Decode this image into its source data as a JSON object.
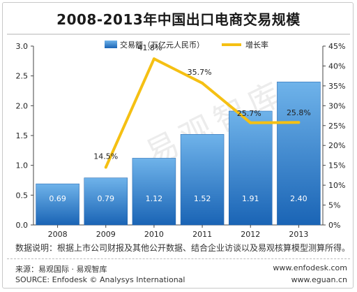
{
  "title": "2008-2013年中国出口电商交易规模",
  "watermark_text": "易观智库",
  "note": "数据说明：根据上市公司财报及其他公开数据、结合企业访谈以及易观核算模型测算所得。",
  "source_cn": "来源：易观国际 · 易观智库",
  "source_en": "SOURCE: Enfodesk © Analysys International",
  "url_1": "www.enfodesk.com",
  "url_2": "www.eguan.cn",
  "colors": {
    "bar_top": "#6fb3ea",
    "bar_bottom": "#1a64b5",
    "line": "#f5c013"
  },
  "chart_data": {
    "type": "bar",
    "categories": [
      "2008",
      "2009",
      "2010",
      "2011",
      "2012",
      "2013"
    ],
    "series": [
      {
        "name": "交易额（万亿元人民币）",
        "type": "bar",
        "axis": "left",
        "values": [
          0.69,
          0.79,
          1.12,
          1.52,
          1.91,
          2.4
        ],
        "labels": [
          "0.69",
          "0.79",
          "1.12",
          "1.52",
          "1.91",
          "2.40"
        ]
      },
      {
        "name": "增长率",
        "type": "line",
        "axis": "right",
        "values": [
          null,
          14.5,
          41.8,
          35.7,
          25.7,
          25.8
        ],
        "labels": [
          "",
          "14.5%",
          "41.8%",
          "35.7%",
          "25.7%",
          "25.8%"
        ]
      }
    ],
    "y_left": {
      "ylim": [
        0,
        3.0
      ],
      "ticks": [
        "0.0",
        "0.5",
        "1.0",
        "1.5",
        "2.0",
        "2.5",
        "3.0"
      ]
    },
    "y_right": {
      "ylim": [
        0,
        45
      ],
      "ticks": [
        "0%",
        "5%",
        "10%",
        "15%",
        "20%",
        "25%",
        "30%",
        "35%",
        "40%",
        "45%"
      ]
    },
    "legend_placement": "top-center",
    "grid": false
  }
}
